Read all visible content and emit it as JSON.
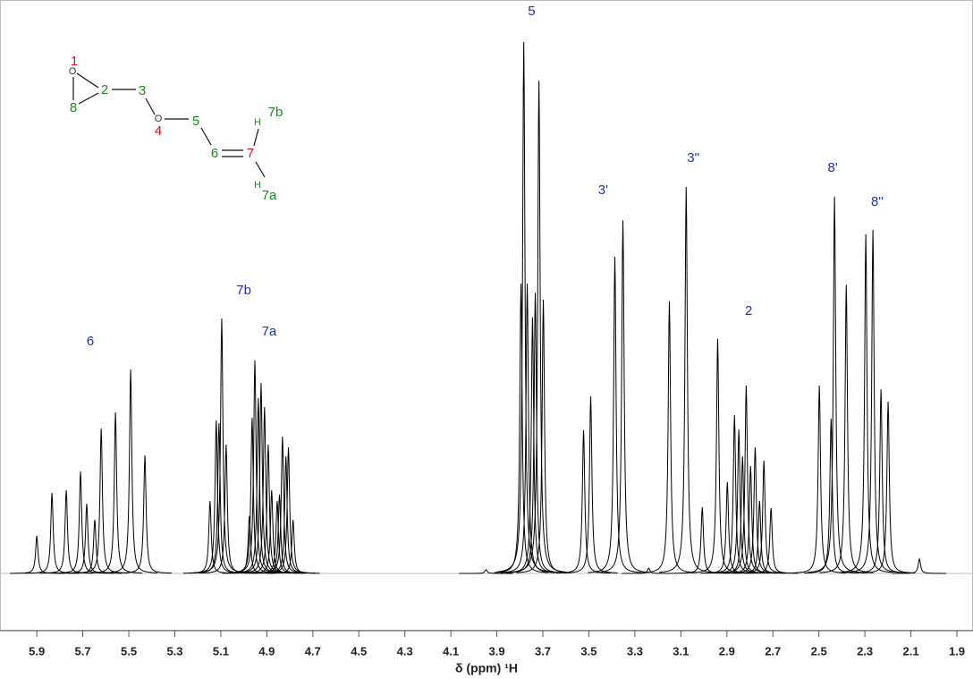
{
  "chart_data": {
    "type": "nmr",
    "xlabel": "δ (ppm) ¹H",
    "xlim": [
      6.06,
      1.83
    ],
    "xticks": [
      5.9,
      5.7,
      5.5,
      5.3,
      5.1,
      4.9,
      4.7,
      4.5,
      4.3,
      4.1,
      3.9,
      3.7,
      3.5,
      3.3,
      3.1,
      2.9,
      2.7,
      2.5,
      2.3,
      2.1,
      1.9
    ],
    "ylim": [
      0,
      100
    ],
    "color": "#000000",
    "x": [
      5.9,
      5.834,
      5.772,
      5.71,
      5.683,
      5.648,
      5.62,
      5.558,
      5.492,
      5.43,
      5.147,
      5.12,
      5.108,
      5.096,
      5.077,
      4.976,
      4.964,
      4.952,
      4.937,
      4.925,
      4.91,
      4.894,
      4.879,
      4.855,
      4.845,
      4.832,
      4.817,
      4.806,
      4.786,
      3.947,
      3.795,
      3.783,
      3.768,
      3.745,
      3.733,
      3.717,
      3.698,
      3.523,
      3.492,
      3.387,
      3.352,
      3.24,
      3.15,
      3.077,
      3.007,
      2.94,
      2.898,
      2.867,
      2.848,
      2.832,
      2.816,
      2.797,
      2.777,
      2.758,
      2.739,
      2.708,
      2.498,
      2.447,
      2.432,
      2.381,
      2.296,
      2.265,
      2.23,
      2.199,
      2.063
    ],
    "values": [
      7,
      15,
      15.5,
      19,
      13,
      10,
      27,
      30,
      38,
      22,
      13.5,
      28.5,
      28,
      47.5,
      24,
      10.7,
      29,
      39.7,
      32.7,
      35.5,
      31,
      24,
      15.5,
      13.5,
      14.7,
      25.5,
      21.8,
      23.5,
      10,
      0.7,
      54,
      99,
      54,
      47.7,
      52.3,
      91.8,
      51,
      26.7,
      33,
      59,
      65.8,
      1,
      50.7,
      72,
      12.3,
      43.7,
      17,
      29.5,
      26.8,
      21.8,
      35,
      20,
      23.5,
      13.5,
      21,
      12.2,
      35,
      28.8,
      70.2,
      53.8,
      63.2,
      64,
      34.3,
      32,
      2.7
    ],
    "annotations": [
      {
        "text": "5",
        "x": 3.749,
        "y": 104.7
      },
      {
        "text": "3'",
        "x": 3.438,
        "y": 71.3
      },
      {
        "text": "3''",
        "x": 3.046,
        "y": 77.3
      },
      {
        "text": "2",
        "x": 2.805,
        "y": 48.8
      },
      {
        "text": "8'",
        "x": 2.44,
        "y": 75.5
      },
      {
        "text": "8''",
        "x": 2.246,
        "y": 69.2
      },
      {
        "text": "6",
        "x": 5.667,
        "y": 43.2
      },
      {
        "text": "7b",
        "x": 5.0,
        "y": 52.7
      },
      {
        "text": "7a",
        "x": 4.89,
        "y": 45
      }
    ]
  },
  "structure": {
    "atoms": [
      "1",
      "O",
      "2",
      "8",
      "3",
      "O",
      "4",
      "5",
      "6",
      "7",
      "H",
      "7b",
      "H",
      "7a"
    ]
  }
}
